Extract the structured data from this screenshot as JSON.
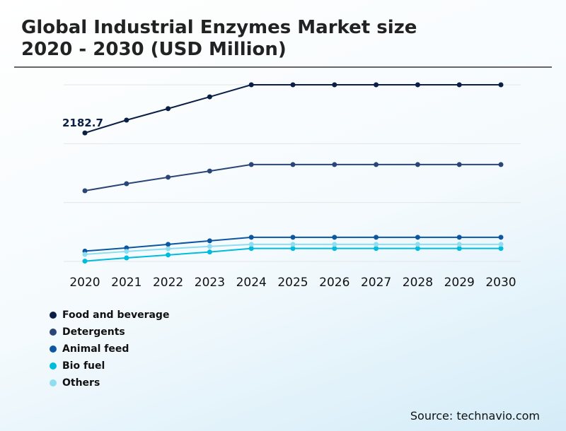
{
  "chart_data": {
    "type": "line",
    "title": "Global Industrial Enzymes Market size 2020 - 2030 (USD Million)",
    "title_lines": [
      "Global Industrial Enzymes Market size",
      "2020 - 2030 (USD Million)"
    ],
    "categories": [
      "2020",
      "2021",
      "2022",
      "2023",
      "2024",
      "2025",
      "2026",
      "2027",
      "2028",
      "2029",
      "2030"
    ],
    "ylim": [
      0,
      3000
    ],
    "grid": true,
    "legend_placement": "bottom-left",
    "annotation": "2182.7",
    "series": [
      {
        "name": "Food and beverage",
        "color": "#0b1f45",
        "values": [
          2182.7,
          2400,
          2595,
          2795,
          3000,
          3000,
          3000,
          3000,
          3000,
          3000,
          3000
        ]
      },
      {
        "name": "Detergents",
        "color": "#2b4577",
        "values": [
          1200,
          1320,
          1430,
          1535,
          1645,
          1645,
          1645,
          1645,
          1645,
          1645,
          1645
        ]
      },
      {
        "name": "Animal feed",
        "color": "#0d56a0",
        "values": [
          175,
          230,
          290,
          350,
          410,
          410,
          410,
          410,
          410,
          410,
          410
        ]
      },
      {
        "name": "Bio fuel",
        "color": "#00bcdc",
        "values": [
          5,
          60,
          110,
          160,
          220,
          220,
          220,
          220,
          220,
          220,
          220
        ]
      },
      {
        "name": "Others",
        "color": "#8fdef0",
        "values": [
          120,
          170,
          215,
          255,
          290,
          290,
          290,
          290,
          290,
          290,
          290
        ]
      }
    ]
  },
  "source": "Source: technavio.com"
}
